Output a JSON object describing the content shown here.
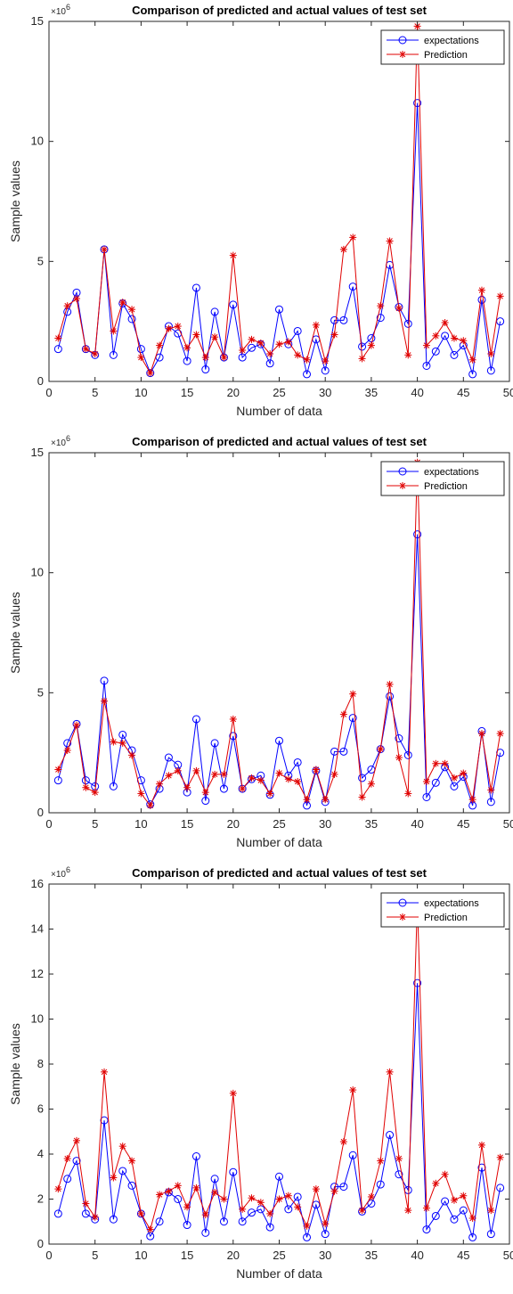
{
  "chart_data": [
    {
      "type": "line",
      "title": "Comparison of predicted and actual values of test set",
      "xlabel": "Number of data",
      "ylabel": "Sample values",
      "y_exponent_label": "×10^6",
      "xlim": [
        0,
        50
      ],
      "ylim": [
        0,
        15
      ],
      "xticks": [
        "0",
        "5",
        "10",
        "15",
        "20",
        "25",
        "30",
        "35",
        "40",
        "45",
        "50"
      ],
      "yticks": [
        "0",
        "5",
        "10",
        "15"
      ],
      "legend_position": "top-right",
      "series": [
        {
          "name": "expectations",
          "color": "#0000ff",
          "marker": "circle",
          "values": [
            1.35,
            2.9,
            3.7,
            1.35,
            1.1,
            5.5,
            1.1,
            3.25,
            2.6,
            1.35,
            0.35,
            1.0,
            2.3,
            2.0,
            0.85,
            3.9,
            0.5,
            2.9,
            1.0,
            3.2,
            1.0,
            1.4,
            1.55,
            0.75,
            3.0,
            1.55,
            2.1,
            0.3,
            1.75,
            0.45,
            2.55,
            2.55,
            3.95,
            1.45,
            1.8,
            2.65,
            4.85,
            3.1,
            2.4,
            11.6,
            0.65,
            1.25,
            1.9,
            1.1,
            1.5,
            0.3,
            3.4,
            0.45,
            2.5
          ]
        },
        {
          "name": "Prediction",
          "color": "#e00000",
          "marker": "asterisk",
          "values": [
            1.8,
            3.15,
            3.45,
            1.35,
            1.15,
            5.5,
            2.1,
            3.3,
            3.0,
            1.0,
            0.35,
            1.5,
            2.2,
            2.3,
            1.4,
            1.95,
            1.0,
            1.85,
            1.0,
            5.25,
            1.3,
            1.75,
            1.6,
            1.15,
            1.55,
            1.65,
            1.1,
            0.9,
            2.35,
            0.85,
            1.95,
            5.5,
            6.0,
            0.95,
            1.5,
            3.15,
            5.85,
            3.05,
            1.1,
            14.8,
            1.5,
            1.9,
            2.45,
            1.8,
            1.7,
            0.9,
            3.8,
            1.15,
            3.55
          ]
        }
      ]
    },
    {
      "type": "line",
      "title": "Comparison of predicted and actual values of test set",
      "xlabel": "Number of data",
      "ylabel": "Sample values",
      "y_exponent_label": "×10^6",
      "xlim": [
        0,
        50
      ],
      "ylim": [
        0,
        15
      ],
      "xticks": [
        "0",
        "5",
        "10",
        "15",
        "20",
        "25",
        "30",
        "35",
        "40",
        "45",
        "50"
      ],
      "yticks": [
        "0",
        "5",
        "10",
        "15"
      ],
      "legend_position": "top-right",
      "series": [
        {
          "name": "expectations",
          "color": "#0000ff",
          "marker": "circle",
          "values": [
            1.35,
            2.9,
            3.7,
            1.35,
            1.1,
            5.5,
            1.1,
            3.25,
            2.6,
            1.35,
            0.35,
            1.0,
            2.3,
            2.0,
            0.85,
            3.9,
            0.5,
            2.9,
            1.0,
            3.2,
            1.0,
            1.4,
            1.55,
            0.75,
            3.0,
            1.55,
            2.1,
            0.3,
            1.75,
            0.45,
            2.55,
            2.55,
            3.95,
            1.45,
            1.8,
            2.65,
            4.85,
            3.1,
            2.4,
            11.6,
            0.65,
            1.25,
            1.9,
            1.1,
            1.5,
            0.3,
            3.4,
            0.45,
            2.5
          ]
        },
        {
          "name": "Prediction",
          "color": "#e00000",
          "marker": "asterisk",
          "values": [
            1.8,
            2.6,
            3.65,
            1.05,
            0.85,
            4.65,
            2.95,
            2.9,
            2.4,
            0.8,
            0.3,
            1.2,
            1.55,
            1.75,
            1.05,
            1.75,
            0.85,
            1.6,
            1.6,
            3.9,
            1.0,
            1.45,
            1.35,
            0.8,
            1.65,
            1.4,
            1.3,
            0.55,
            1.8,
            0.55,
            1.6,
            4.1,
            4.95,
            0.65,
            1.2,
            2.65,
            5.35,
            2.3,
            0.8,
            14.6,
            1.3,
            2.05,
            2.05,
            1.45,
            1.65,
            0.55,
            3.3,
            0.95,
            3.3
          ]
        }
      ]
    },
    {
      "type": "line",
      "title": "Comparison of predicted and actual values of test set",
      "xlabel": "Number of data",
      "ylabel": "Sample values",
      "y_exponent_label": "×10^6",
      "xlim": [
        0,
        50
      ],
      "ylim": [
        0,
        16
      ],
      "xticks": [
        "0",
        "5",
        "10",
        "15",
        "20",
        "25",
        "30",
        "35",
        "40",
        "45",
        "50"
      ],
      "yticks": [
        "0",
        "2",
        "4",
        "6",
        "8",
        "10",
        "12",
        "14",
        "16"
      ],
      "legend_position": "top-right",
      "series": [
        {
          "name": "expectations",
          "color": "#0000ff",
          "marker": "circle",
          "values": [
            1.35,
            2.9,
            3.7,
            1.35,
            1.1,
            5.5,
            1.1,
            3.25,
            2.6,
            1.35,
            0.35,
            1.0,
            2.3,
            2.0,
            0.85,
            3.9,
            0.5,
            2.9,
            1.0,
            3.2,
            1.0,
            1.4,
            1.55,
            0.75,
            3.0,
            1.55,
            2.1,
            0.3,
            1.75,
            0.45,
            2.55,
            2.55,
            3.95,
            1.45,
            1.8,
            2.65,
            4.85,
            3.1,
            2.4,
            11.6,
            0.65,
            1.25,
            1.9,
            1.1,
            1.5,
            0.3,
            3.4,
            0.45,
            2.5
          ]
        },
        {
          "name": "Prediction",
          "color": "#e00000",
          "marker": "asterisk",
          "values": [
            2.45,
            3.8,
            4.6,
            1.8,
            1.2,
            7.65,
            2.95,
            4.35,
            3.7,
            1.35,
            0.65,
            2.2,
            2.35,
            2.6,
            1.65,
            2.5,
            1.3,
            2.3,
            2.0,
            6.7,
            1.55,
            2.05,
            1.85,
            1.35,
            2.0,
            2.15,
            1.65,
            0.8,
            2.45,
            0.9,
            2.35,
            4.55,
            6.85,
            1.5,
            2.1,
            3.7,
            7.65,
            3.8,
            1.5,
            15.2,
            1.6,
            2.7,
            3.1,
            1.95,
            2.15,
            1.15,
            4.4,
            1.5,
            3.85
          ]
        }
      ]
    }
  ]
}
